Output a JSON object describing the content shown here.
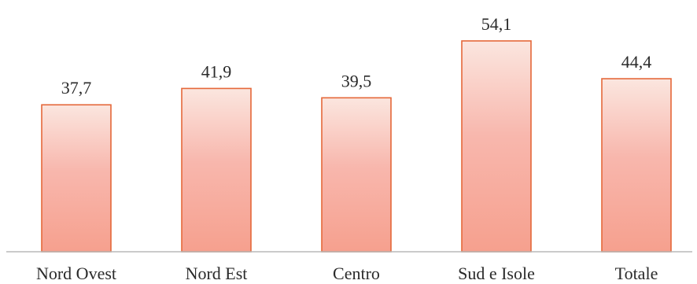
{
  "chart_data": {
    "type": "bar",
    "title": "",
    "xlabel": "",
    "ylabel": "",
    "categories": [
      "Nord Ovest",
      "Nord Est",
      "Centro",
      "Sud e Isole",
      "Totale"
    ],
    "values": [
      37.7,
      41.9,
      39.5,
      54.1,
      44.4
    ],
    "value_labels": [
      "37,7",
      "41,9",
      "39,5",
      "54,1",
      "44,4"
    ],
    "ylim": [
      0,
      60
    ],
    "grid": false,
    "legend": "none",
    "colors": {
      "bar_fill_top": "#fbe6df",
      "bar_fill_mid": "#f8b7ad",
      "bar_fill_bottom": "#f6a08e",
      "bar_stroke": "#e5683a",
      "baseline": "#b9b9b9"
    }
  }
}
